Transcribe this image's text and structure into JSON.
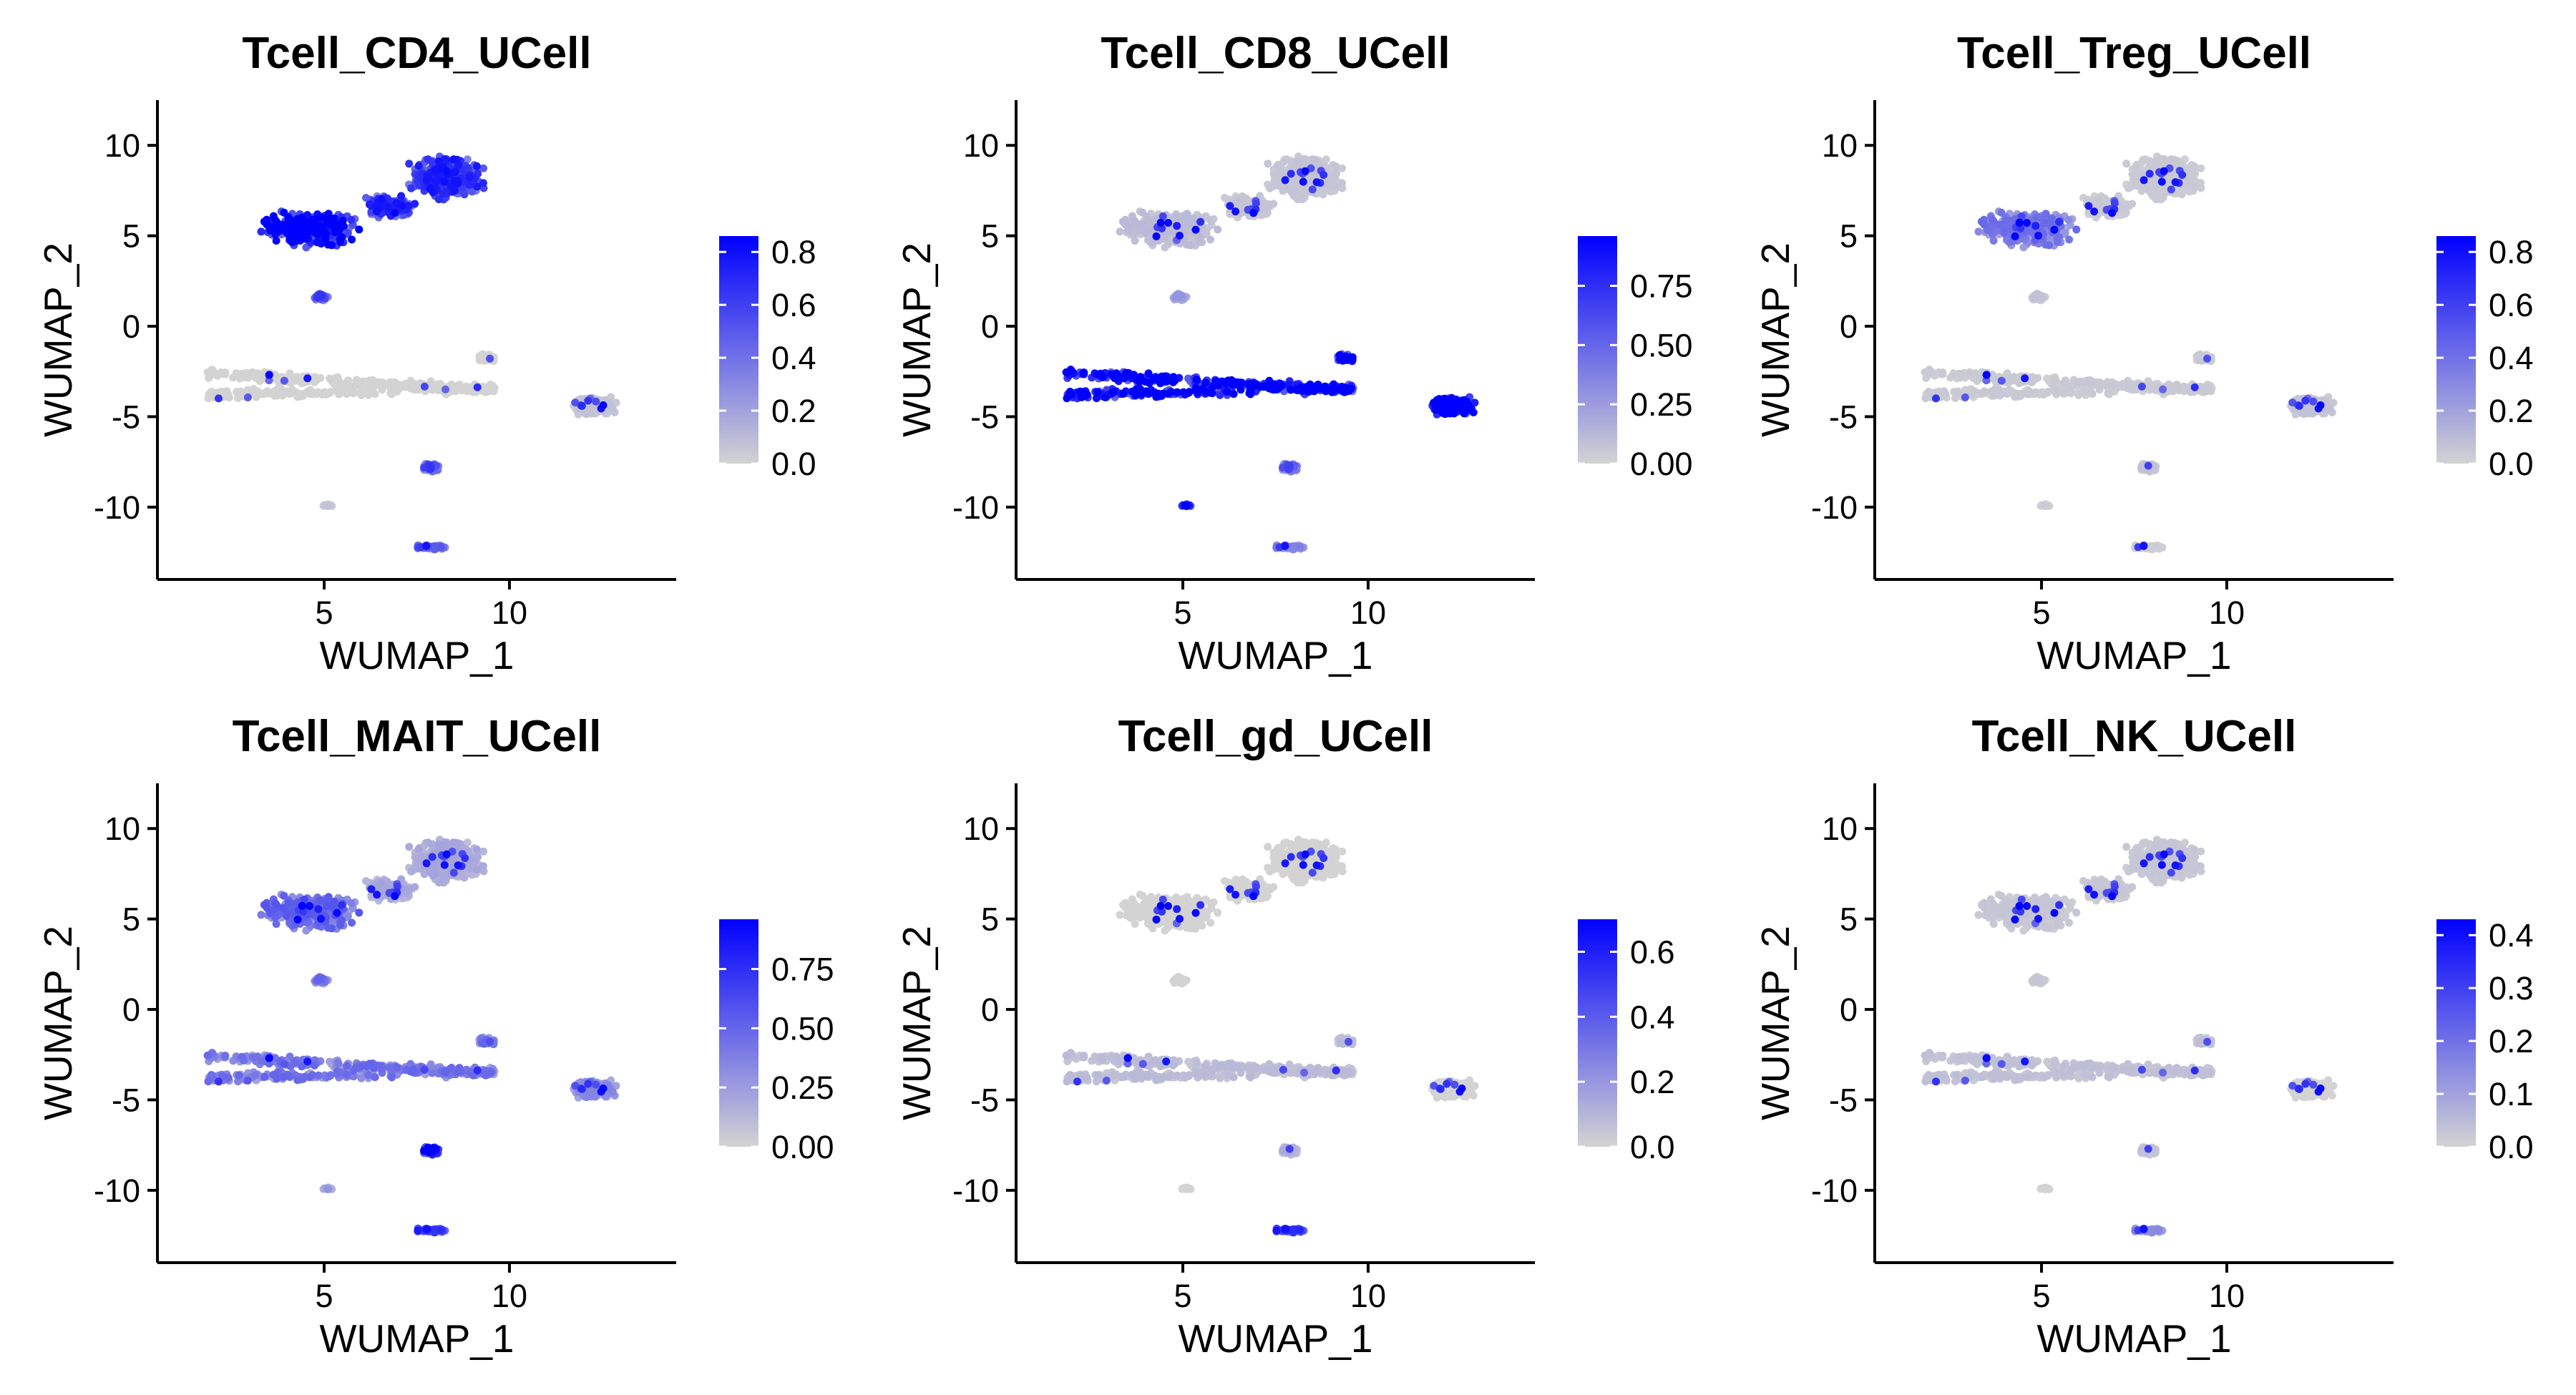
{
  "colors": {
    "low": "#d3d3d3",
    "high": "#0000ff",
    "axis": "#000000"
  },
  "chart_data": [
    {
      "type": "scatter",
      "title": "Tcell_CD4_UCell",
      "xlabel": "WUMAP_1",
      "ylabel": "WUMAP_2",
      "xticks": [
        "5",
        "10"
      ],
      "yticks": [
        "10",
        "5",
        "0",
        "-5",
        "-10"
      ],
      "xlim": [
        0.5,
        14.5
      ],
      "ylim": [
        -14,
        12.5
      ],
      "legend": {
        "position": "right",
        "min": 0.0,
        "max": 0.86,
        "ticks": [
          "0.8",
          "0.6",
          "0.4",
          "0.2",
          "0.0"
        ],
        "tick_values": [
          0.8,
          0.6,
          0.4,
          0.2,
          0.0
        ]
      },
      "cluster_scores": {
        "A": 0.7,
        "B": 0.55,
        "C": 0.45,
        "D": 0.0,
        "E": 0.05,
        "F": 0.45,
        "G": 0.05,
        "H": 0.4
      }
    },
    {
      "type": "scatter",
      "title": "Tcell_CD8_UCell",
      "xlabel": "WUMAP_1",
      "ylabel": "WUMAP_2",
      "xticks": [
        "5",
        "10"
      ],
      "yticks": [
        "10",
        "5",
        "0",
        "-5",
        "-10"
      ],
      "xlim": [
        0.5,
        14.5
      ],
      "ylim": [
        -14,
        12.5
      ],
      "legend": {
        "position": "right",
        "min": 0.0,
        "max": 0.96,
        "ticks": [
          "0.75",
          "0.50",
          "0.25",
          "0.00"
        ],
        "tick_values": [
          0.75,
          0.5,
          0.25,
          0.0
        ]
      },
      "cluster_scores": {
        "A": 0.08,
        "B": 0.05,
        "C": 0.2,
        "D": 0.85,
        "E": 0.92,
        "F": 0.45,
        "G": 0.9,
        "H": 0.3
      }
    },
    {
      "type": "scatter",
      "title": "Tcell_Treg_UCell",
      "xlabel": "WUMAP_1",
      "ylabel": "WUMAP_2",
      "xticks": [
        "5",
        "10"
      ],
      "yticks": [
        "10",
        "5",
        "0",
        "-5",
        "-10"
      ],
      "xlim": [
        0.5,
        14.5
      ],
      "ylim": [
        -14,
        12.5
      ],
      "legend": {
        "position": "right",
        "min": 0.0,
        "max": 0.86,
        "ticks": [
          "0.8",
          "0.6",
          "0.4",
          "0.2",
          "0.0"
        ],
        "tick_values": [
          0.8,
          0.6,
          0.4,
          0.2,
          0.0
        ]
      },
      "cluster_scores": {
        "A": 0.3,
        "B": 0.03,
        "C": 0.05,
        "D": 0.03,
        "E": 0.05,
        "F": 0.06,
        "G": 0.02,
        "H": 0.02
      }
    },
    {
      "type": "scatter",
      "title": "Tcell_MAIT_UCell",
      "xlabel": "WUMAP_1",
      "ylabel": "WUMAP_2",
      "xticks": [
        "5",
        "10"
      ],
      "yticks": [
        "10",
        "5",
        "0",
        "-5",
        "-10"
      ],
      "xlim": [
        0.5,
        14.5
      ],
      "ylim": [
        -14,
        12.5
      ],
      "legend": {
        "position": "right",
        "min": 0.0,
        "max": 0.96,
        "ticks": [
          "0.75",
          "0.50",
          "0.25",
          "0.00"
        ],
        "tick_values": [
          0.75,
          0.5,
          0.25,
          0.0
        ]
      },
      "cluster_scores": {
        "A": 0.4,
        "B": 0.15,
        "C": 0.35,
        "D": 0.35,
        "E": 0.25,
        "F": 0.85,
        "G": 0.2,
        "H": 0.6
      }
    },
    {
      "type": "scatter",
      "title": "Tcell_gd_UCell",
      "xlabel": "WUMAP_1",
      "ylabel": "WUMAP_2",
      "xticks": [
        "5",
        "10"
      ],
      "yticks": [
        "10",
        "5",
        "0",
        "-5",
        "-10"
      ],
      "xlim": [
        0.5,
        14.5
      ],
      "ylim": [
        -14,
        12.5
      ],
      "legend": {
        "position": "right",
        "min": 0.0,
        "max": 0.7,
        "ticks": [
          "0.6",
          "0.4",
          "0.2",
          "0.0"
        ],
        "tick_values": [
          0.6,
          0.4,
          0.2,
          0.0
        ]
      },
      "cluster_scores": {
        "A": 0.0,
        "B": 0.0,
        "C": 0.0,
        "D": 0.06,
        "E": 0.0,
        "F": 0.1,
        "G": 0.0,
        "H": 0.45
      }
    },
    {
      "type": "scatter",
      "title": "Tcell_NK_UCell",
      "xlabel": "WUMAP_1",
      "ylabel": "WUMAP_2",
      "xticks": [
        "5",
        "10"
      ],
      "yticks": [
        "10",
        "5",
        "0",
        "-5",
        "-10"
      ],
      "xlim": [
        0.5,
        14.5
      ],
      "ylim": [
        -14,
        12.5
      ],
      "legend": {
        "position": "right",
        "min": 0.0,
        "max": 0.43,
        "ticks": [
          "0.4",
          "0.3",
          "0.2",
          "0.1",
          "0.0"
        ],
        "tick_values": [
          0.4,
          0.3,
          0.2,
          0.1,
          0.0
        ]
      },
      "cluster_scores": {
        "A": 0.02,
        "B": 0.02,
        "C": 0.02,
        "D": 0.03,
        "E": 0.0,
        "F": 0.03,
        "G": 0.0,
        "H": 0.12
      }
    }
  ]
}
